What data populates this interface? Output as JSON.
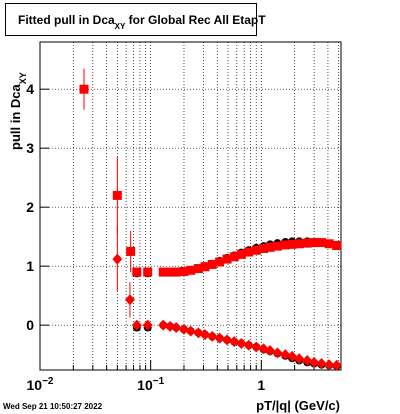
{
  "chart_data": {
    "type": "scatter",
    "title": {
      "text": "Fitted pull in Dca",
      "subscript": "XY",
      "rest": " for Global Rec All EtapT"
    },
    "y_label": {
      "text": "pull in Dca",
      "subscript": "XY"
    },
    "x_label": "pT/|q| (GeV/c)",
    "footer": "Wed Sep 21 10:50:27 2022",
    "x_log": true,
    "grid": true,
    "xlim": [
      0.01,
      5.25
    ],
    "ylim": [
      -0.76,
      4.8
    ],
    "yticks": [
      0,
      1,
      2,
      3,
      4
    ],
    "xticks": [
      {
        "value": 0.01,
        "label": "10",
        "exponent": "−2"
      },
      {
        "value": 0.1,
        "label": "10",
        "exponent": "−1"
      },
      1
    ],
    "xminorticks": [
      0.02,
      0.03,
      0.04,
      0.05,
      0.06,
      0.07,
      0.08,
      0.09,
      0.2,
      0.3,
      0.4,
      0.5,
      0.6,
      0.7,
      0.8,
      0.9,
      2,
      3,
      4,
      5
    ],
    "series": [
      {
        "color": "#000000",
        "marker": "circle",
        "x": [
          0.075,
          0.094,
          0.13,
          0.15,
          0.17,
          0.2,
          0.23,
          0.27,
          0.31,
          0.36,
          0.42,
          0.49,
          0.57,
          0.66,
          0.77,
          0.9,
          1.05,
          1.2,
          1.4,
          1.65,
          1.9,
          2.2,
          2.6,
          3.0,
          3.5,
          4.1,
          4.8
        ],
        "values": [
          0.88,
          0.88,
          0.89,
          0.89,
          0.9,
          0.91,
          0.93,
          0.96,
          1.0,
          1.04,
          1.09,
          1.14,
          1.18,
          1.23,
          1.27,
          1.31,
          1.34,
          1.37,
          1.39,
          1.41,
          1.42,
          1.42,
          1.42,
          1.41,
          1.4,
          1.38,
          1.35
        ]
      },
      {
        "color": "#000000",
        "marker": "circle",
        "x": [
          0.075,
          0.094,
          0.13,
          0.15,
          0.17,
          0.2,
          0.23,
          0.27,
          0.31,
          0.36,
          0.42,
          0.49,
          0.57,
          0.66,
          0.77,
          0.9,
          1.05,
          1.2,
          1.4,
          1.65,
          1.9,
          2.2,
          2.6,
          3.0,
          3.5,
          4.1,
          4.8
        ],
        "values": [
          -0.04,
          -0.04,
          0.0,
          -0.02,
          -0.04,
          -0.07,
          -0.1,
          -0.13,
          -0.16,
          -0.19,
          -0.22,
          -0.25,
          -0.28,
          -0.31,
          -0.34,
          -0.37,
          -0.41,
          -0.44,
          -0.48,
          -0.52,
          -0.56,
          -0.6,
          -0.63,
          -0.65,
          -0.67,
          -0.68,
          -0.69
        ]
      },
      {
        "color": "#ff0000",
        "marker": "square",
        "x": [
          0.025,
          0.05,
          0.066,
          0.075,
          0.094,
          0.13,
          0.15,
          0.17,
          0.2,
          0.23,
          0.27,
          0.31,
          0.36,
          0.42,
          0.49,
          0.57,
          0.66,
          0.77,
          0.9,
          1.05,
          1.2,
          1.4,
          1.65,
          1.9,
          2.2,
          2.6,
          3.0,
          3.5,
          4.1,
          4.8
        ],
        "values": [
          4.0,
          2.2,
          1.25,
          0.9,
          0.9,
          0.9,
          0.9,
          0.9,
          0.91,
          0.93,
          0.96,
          0.99,
          1.03,
          1.07,
          1.12,
          1.16,
          1.2,
          1.24,
          1.27,
          1.3,
          1.32,
          1.34,
          1.36,
          1.37,
          1.38,
          1.39,
          1.4,
          1.4,
          1.38,
          1.35
        ],
        "errors": [
          0.35,
          0.65,
          0.35,
          null,
          null,
          null,
          null,
          null,
          null,
          null,
          null,
          null,
          null,
          null,
          null,
          null,
          null,
          null,
          null,
          null,
          null,
          null,
          null,
          null,
          null,
          null,
          null,
          null,
          null,
          null
        ]
      },
      {
        "color": "#ff0000",
        "marker": "diamond",
        "x": [
          0.05,
          0.065,
          0.075,
          0.094,
          0.13,
          0.15,
          0.17,
          0.2,
          0.23,
          0.27,
          0.31,
          0.36,
          0.42,
          0.49,
          0.57,
          0.66,
          0.77,
          0.9,
          1.05,
          1.2,
          1.4,
          1.65,
          1.9,
          2.2,
          2.6,
          3.0,
          3.5,
          4.1,
          4.8
        ],
        "values": [
          1.12,
          0.43,
          0.0,
          0.0,
          0.0,
          -0.02,
          -0.04,
          -0.07,
          -0.1,
          -0.13,
          -0.16,
          -0.19,
          -0.22,
          -0.25,
          -0.28,
          -0.31,
          -0.34,
          -0.37,
          -0.4,
          -0.43,
          -0.47,
          -0.5,
          -0.53,
          -0.57,
          -0.6,
          -0.63,
          -0.65,
          -0.67,
          -0.68
        ],
        "errors": [
          0.55,
          0.3,
          null,
          null,
          null,
          null,
          null,
          null,
          null,
          null,
          null,
          null,
          null,
          null,
          null,
          null,
          null,
          null,
          null,
          null,
          null,
          null,
          null,
          null,
          null,
          null,
          null,
          null,
          null
        ]
      }
    ]
  }
}
